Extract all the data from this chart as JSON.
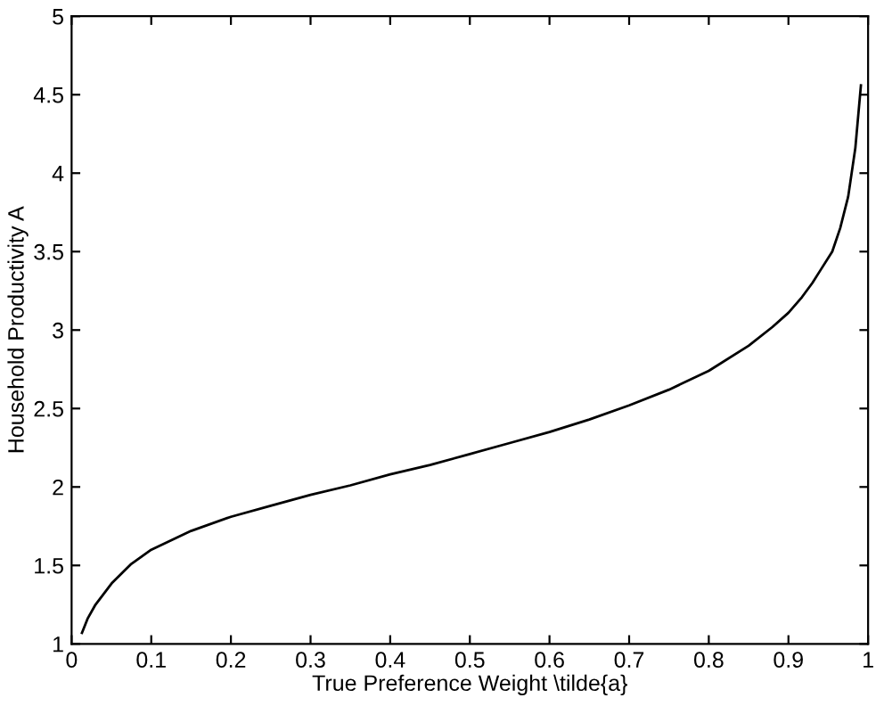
{
  "chart_data": {
    "type": "line",
    "xlabel": "True Preference Weight \\tilde{a}",
    "ylabel": "Household Productivity A",
    "x": [
      0.013,
      0.02,
      0.03,
      0.051,
      0.075,
      0.1,
      0.15,
      0.2,
      0.25,
      0.3,
      0.35,
      0.4,
      0.45,
      0.5,
      0.55,
      0.6,
      0.65,
      0.7,
      0.75,
      0.8,
      0.85,
      0.88,
      0.9,
      0.917,
      0.93,
      0.94,
      0.955,
      0.965,
      0.975,
      0.984,
      0.991
    ],
    "series": [
      {
        "color": "#000000",
        "values": [
          1.07,
          1.16,
          1.25,
          1.39,
          1.51,
          1.6,
          1.72,
          1.81,
          1.88,
          1.95,
          2.01,
          2.08,
          2.14,
          2.21,
          2.28,
          2.35,
          2.43,
          2.52,
          2.62,
          2.74,
          2.9,
          3.02,
          3.11,
          3.21,
          3.3,
          3.38,
          3.5,
          3.65,
          3.85,
          4.16,
          4.56
        ]
      }
    ],
    "xlim": [
      0,
      1
    ],
    "ylim": [
      1,
      5
    ],
    "xticks": [
      0,
      0.1,
      0.2,
      0.3,
      0.4,
      0.5,
      0.6,
      0.7,
      0.8,
      0.9,
      1
    ],
    "yticks": [
      1,
      1.5,
      2,
      2.5,
      3,
      3.5,
      4,
      4.5,
      5
    ],
    "grid": false,
    "legend": false,
    "marker": "none",
    "line_style": "solid"
  }
}
